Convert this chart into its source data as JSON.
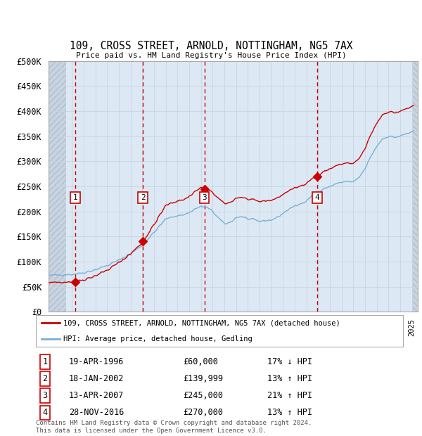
{
  "title": "109, CROSS STREET, ARNOLD, NOTTINGHAM, NG5 7AX",
  "subtitle": "Price paid vs. HM Land Registry's House Price Index (HPI)",
  "ylim": [
    0,
    500000
  ],
  "yticks": [
    0,
    50000,
    100000,
    150000,
    200000,
    250000,
    300000,
    350000,
    400000,
    450000,
    500000
  ],
  "ytick_labels": [
    "£0",
    "£50K",
    "£100K",
    "£150K",
    "£200K",
    "£250K",
    "£300K",
    "£350K",
    "£400K",
    "£450K",
    "£500K"
  ],
  "xlim_start": 1994.0,
  "xlim_end": 2025.5,
  "plot_bg_color": "#dce9f5",
  "grid_color": "#c8d4e0",
  "sale_color": "#cc0000",
  "hpi_color": "#7aafd4",
  "sale_label": "109, CROSS STREET, ARNOLD, NOTTINGHAM, NG5 7AX (detached house)",
  "hpi_label": "HPI: Average price, detached house, Gedling",
  "transactions": [
    {
      "num": 1,
      "date": "19-APR-1996",
      "year": 1996.29,
      "price": 60000,
      "pct": "17%",
      "dir": "↓"
    },
    {
      "num": 2,
      "date": "18-JAN-2002",
      "year": 2002.05,
      "price": 139999,
      "pct": "13%",
      "dir": "↑"
    },
    {
      "num": 3,
      "date": "13-APR-2007",
      "year": 2007.29,
      "price": 245000,
      "pct": "21%",
      "dir": "↑"
    },
    {
      "num": 4,
      "date": "28-NOV-2016",
      "year": 2016.91,
      "price": 270000,
      "pct": "13%",
      "dir": "↑"
    }
  ],
  "footer": "Contains HM Land Registry data © Crown copyright and database right 2024.\nThis data is licensed under the Open Government Licence v3.0."
}
